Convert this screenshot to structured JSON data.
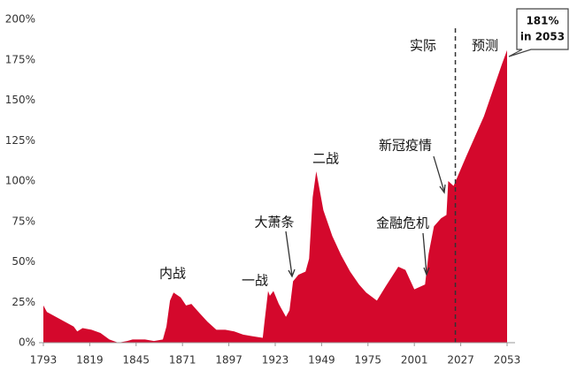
{
  "chart_data": {
    "type": "area",
    "x": [
      1793,
      1795,
      1800,
      1805,
      1810,
      1812,
      1815,
      1820,
      1825,
      1830,
      1835,
      1840,
      1843,
      1850,
      1855,
      1860,
      1862,
      1864,
      1866,
      1870,
      1873,
      1876,
      1880,
      1885,
      1890,
      1895,
      1900,
      1905,
      1910,
      1916,
      1917,
      1919,
      1920,
      1922,
      1925,
      1929,
      1931,
      1933,
      1936,
      1940,
      1942,
      1944,
      1946,
      1948,
      1950,
      1955,
      1960,
      1965,
      1970,
      1974,
      1980,
      1985,
      1992,
      1996,
      2001,
      2007,
      2009,
      2012,
      2016,
      2019,
      2020,
      2023,
      2030,
      2040,
      2050,
      2053
    ],
    "values": [
      23,
      19,
      16,
      13,
      10,
      7,
      9,
      8,
      6,
      2,
      0,
      1,
      2,
      2,
      1,
      2,
      10,
      26,
      31,
      28,
      23,
      24,
      19,
      13,
      8,
      8,
      7,
      5,
      4,
      3,
      13,
      32,
      29,
      32,
      24,
      16,
      20,
      38,
      42,
      44,
      52,
      90,
      106,
      94,
      82,
      66,
      54,
      44,
      36,
      31,
      26,
      35,
      47,
      45,
      33,
      36,
      55,
      72,
      77,
      79,
      100,
      97,
      115,
      140,
      172,
      181
    ],
    "color": "#d4082c",
    "xlim": [
      1793,
      2053
    ],
    "xticks": [
      1793,
      1819,
      1845,
      1871,
      1897,
      1923,
      1949,
      1975,
      2001,
      2027,
      2053
    ],
    "ylim": [
      0,
      200
    ],
    "yticks": [
      {
        "value": 0,
        "label": "0%"
      },
      {
        "value": 25,
        "label": "25%"
      },
      {
        "value": 50,
        "label": "50%"
      },
      {
        "value": 75,
        "label": "75%"
      },
      {
        "value": 100,
        "label": "100%"
      },
      {
        "value": 125,
        "label": "125%"
      },
      {
        "value": 150,
        "label": "150%"
      },
      {
        "value": 175,
        "label": "175%"
      },
      {
        "value": 200,
        "label": "200%"
      }
    ],
    "divider_x": 2024,
    "annotations": [
      "实际",
      "预测",
      "内战",
      "一战",
      "大萧条",
      "二战",
      "新冠疫情",
      "金融危机"
    ],
    "callout": [
      "181%",
      "in 2053"
    ]
  }
}
